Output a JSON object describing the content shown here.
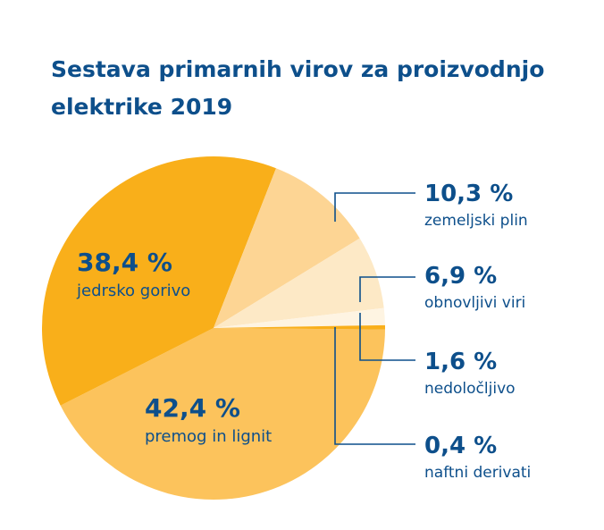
{
  "chart_data": {
    "type": "pie",
    "title": "Sestava primarnih virov za proizvodnjo elektrike 2019",
    "title_lines": [
      "Sestava primarnih virov za proizvodnjo",
      "elektrike 2019"
    ],
    "slices": [
      {
        "id": "premog",
        "label": "premog in lignit",
        "value": 42.4,
        "value_text": "42,4 %",
        "color": "#fcc35c"
      },
      {
        "id": "jedrsko",
        "label": "jedrsko gorivo",
        "value": 38.4,
        "value_text": "38,4 %",
        "color": "#f9af1a"
      },
      {
        "id": "plin",
        "label": "zemeljski plin",
        "value": 10.3,
        "value_text": "10,3 %",
        "color": "#fdd594"
      },
      {
        "id": "obnovljivi",
        "label": "obnovljivi viri",
        "value": 6.9,
        "value_text": "6,9 %",
        "color": "#fde9c6"
      },
      {
        "id": "nedolocljivo",
        "label": "nedoločljivo",
        "value": 1.6,
        "value_text": "1,6 %",
        "color": "#fef4e2"
      },
      {
        "id": "naftni",
        "label": "naftni derivati",
        "value": 0.4,
        "value_text": "0,4 %",
        "color": "#f9af1a"
      }
    ]
  }
}
